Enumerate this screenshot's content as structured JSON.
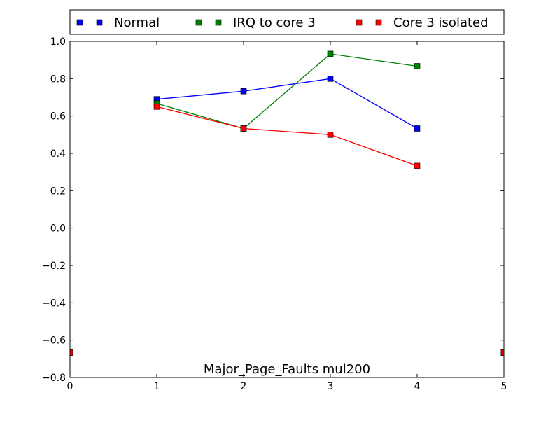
{
  "chart_data": {
    "type": "line",
    "title": "Major_Page_Faults mul200",
    "xlabel": "",
    "ylabel": "",
    "xlim": [
      0,
      5
    ],
    "ylim": [
      -0.8,
      1.0
    ],
    "xticks": [
      0,
      1,
      2,
      3,
      4,
      5
    ],
    "yticks": [
      -0.8,
      -0.6,
      -0.4,
      -0.2,
      0.0,
      0.2,
      0.4,
      0.6,
      0.8,
      1.0
    ],
    "xtick_labels": [
      "0",
      "1",
      "2",
      "3",
      "4",
      "5"
    ],
    "ytick_labels": [
      "−0.8",
      "−0.6",
      "−0.4",
      "−0.2",
      "0.0",
      "0.2",
      "0.4",
      "0.6",
      "0.8",
      "1.0"
    ],
    "legend_position": "top, above plot, horizontal",
    "grid": false,
    "series": [
      {
        "name": "Normal",
        "color": "#0000ff",
        "points": [
          {
            "x": 0,
            "y": -0.667,
            "connected": false
          },
          {
            "x": 1,
            "y": 0.69,
            "connected": true
          },
          {
            "x": 2,
            "y": 0.733,
            "connected": true
          },
          {
            "x": 3,
            "y": 0.8,
            "connected": true
          },
          {
            "x": 4,
            "y": 0.533,
            "connected": true
          },
          {
            "x": 5,
            "y": -0.667,
            "connected": false
          }
        ]
      },
      {
        "name": "IRQ to core 3",
        "color": "#008000",
        "points": [
          {
            "x": 0,
            "y": -0.667,
            "connected": false
          },
          {
            "x": 1,
            "y": 0.667,
            "connected": true
          },
          {
            "x": 2,
            "y": 0.533,
            "connected": true
          },
          {
            "x": 3,
            "y": 0.933,
            "connected": true
          },
          {
            "x": 4,
            "y": 0.867,
            "connected": true
          },
          {
            "x": 5,
            "y": -0.667,
            "connected": false
          }
        ]
      },
      {
        "name": "Core 3 isolated",
        "color": "#ff0000",
        "points": [
          {
            "x": 0,
            "y": -0.667,
            "connected": false
          },
          {
            "x": 1,
            "y": 0.65,
            "connected": true
          },
          {
            "x": 2,
            "y": 0.533,
            "connected": true
          },
          {
            "x": 3,
            "y": 0.5,
            "connected": true
          },
          {
            "x": 4,
            "y": 0.333,
            "connected": true
          },
          {
            "x": 5,
            "y": -0.667,
            "connected": false
          }
        ]
      }
    ]
  }
}
